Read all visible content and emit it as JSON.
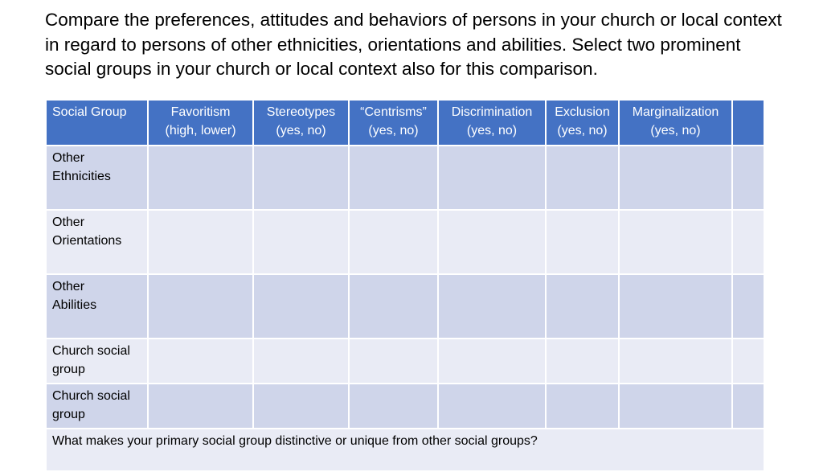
{
  "title": "Compare the preferences, attitudes and behaviors of persons in your church or local context in regard to persons of other ethnicities, orientations and abilities. Select two prominent social groups in your church or local context also for this comparison.",
  "table": {
    "headers": [
      {
        "line1": "Social Group",
        "line2": ""
      },
      {
        "line1": "Favoritism",
        "line2": "(high, lower)"
      },
      {
        "line1": "Stereotypes",
        "line2": "(yes, no)"
      },
      {
        "line1": "“Centrisms”",
        "line2": "(yes, no)"
      },
      {
        "line1": "Discrimination",
        "line2": "(yes, no)"
      },
      {
        "line1": "Exclusion",
        "line2": "(yes, no)"
      },
      {
        "line1": "Marginalization",
        "line2": "(yes, no)"
      },
      {
        "line1": "",
        "line2": ""
      }
    ],
    "rows": [
      {
        "line1": "Other",
        "line2": "Ethnicities"
      },
      {
        "line1": "Other",
        "line2": "Orientations"
      },
      {
        "line1": "Other",
        "line2": "Abilities"
      },
      {
        "line1": "Church social",
        "line2": "group"
      },
      {
        "line1": "Church social",
        "line2": "group"
      }
    ],
    "footer": "What makes your primary social group distinctive or unique from other social groups?"
  },
  "colors": {
    "header": "#4472c4",
    "row_dark": "#cfd5ea",
    "row_light": "#e9ebf5"
  }
}
